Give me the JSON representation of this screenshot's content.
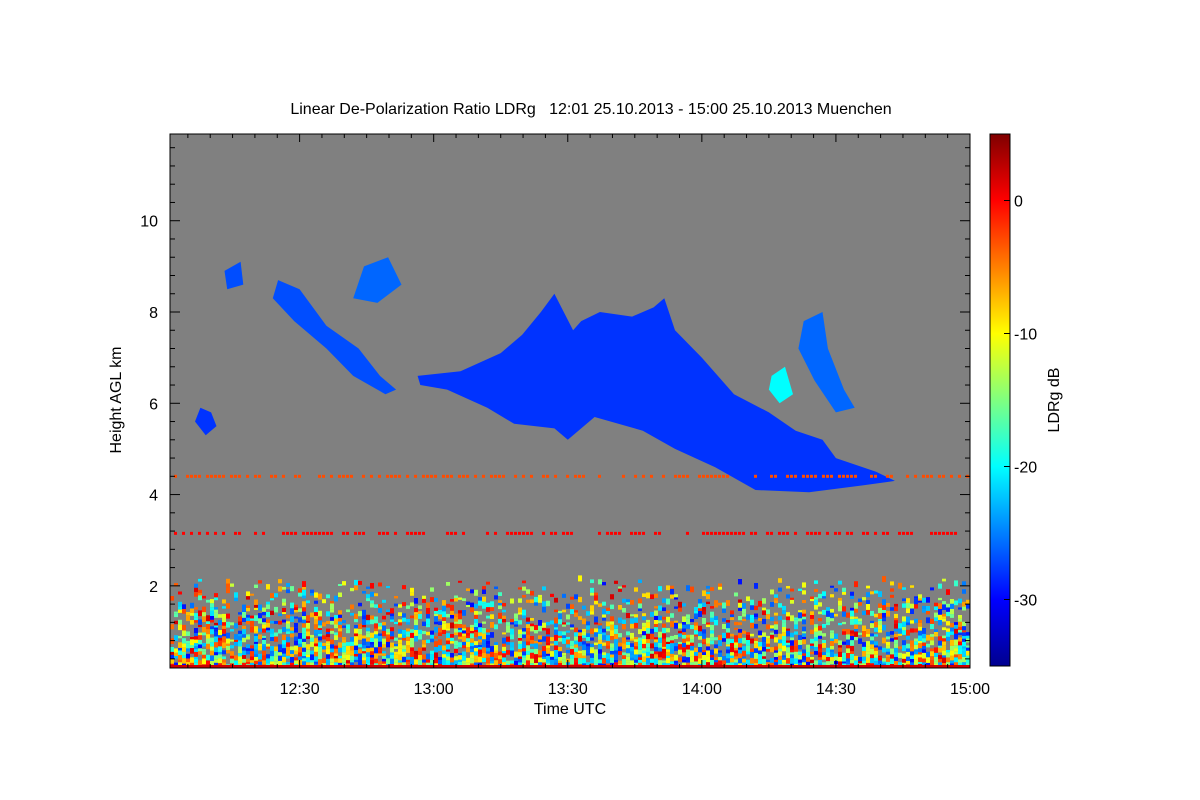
{
  "chart_data": {
    "type": "heatmap",
    "title": "Linear De-Polarization Ratio LDRg   12:01 25.10.2013 - 15:00 25.10.2013 Muenchen",
    "xlabel": "Time UTC",
    "ylabel": "Height AGL km",
    "x_ticks": [
      "12:30",
      "13:00",
      "13:30",
      "14:00",
      "14:30",
      "15:00"
    ],
    "x_tick_hours": [
      12.5,
      13.0,
      13.5,
      14.0,
      14.5,
      15.0
    ],
    "xlim_hours": [
      12.0167,
      15.0
    ],
    "y_ticks": [
      2,
      4,
      6,
      8,
      10
    ],
    "ylim": [
      0.2,
      11.9
    ],
    "background_color": "#808080",
    "colorbar": {
      "label": "LDRg dB",
      "ticks": [
        0,
        -10,
        -20,
        -30
      ],
      "range": [
        -35,
        5
      ],
      "colormap": "jet"
    },
    "features": [
      {
        "kind": "cirrus",
        "ldr_db": -28,
        "points": [
          [
            12.13,
            5.9
          ],
          [
            12.17,
            5.8
          ],
          [
            12.19,
            5.5
          ],
          [
            12.15,
            5.3
          ],
          [
            12.11,
            5.6
          ]
        ]
      },
      {
        "kind": "cirrus",
        "ldr_db": -27,
        "points": [
          [
            12.22,
            8.9
          ],
          [
            12.28,
            9.1
          ],
          [
            12.29,
            8.6
          ],
          [
            12.23,
            8.5
          ]
        ]
      },
      {
        "kind": "cirrus",
        "ldr_db": -27,
        "points": [
          [
            12.42,
            8.7
          ],
          [
            12.5,
            8.5
          ],
          [
            12.6,
            7.7
          ],
          [
            12.72,
            7.2
          ],
          [
            12.8,
            6.6
          ],
          [
            12.86,
            6.3
          ],
          [
            12.82,
            6.2
          ],
          [
            12.7,
            6.6
          ],
          [
            12.6,
            7.2
          ],
          [
            12.48,
            7.8
          ],
          [
            12.4,
            8.3
          ]
        ]
      },
      {
        "kind": "cirrus",
        "ldr_db": -26,
        "points": [
          [
            12.74,
            9.0
          ],
          [
            12.83,
            9.2
          ],
          [
            12.88,
            8.6
          ],
          [
            12.79,
            8.2
          ],
          [
            12.7,
            8.3
          ]
        ]
      },
      {
        "kind": "cirrus",
        "ldr_db": -28,
        "points": [
          [
            12.94,
            6.6
          ],
          [
            13.1,
            6.7
          ],
          [
            13.25,
            7.1
          ],
          [
            13.33,
            7.5
          ],
          [
            13.4,
            8.0
          ],
          [
            13.45,
            8.4
          ],
          [
            13.52,
            7.6
          ],
          [
            13.55,
            7.8
          ],
          [
            13.62,
            8.0
          ],
          [
            13.74,
            7.9
          ],
          [
            13.82,
            8.1
          ],
          [
            13.86,
            8.3
          ],
          [
            13.9,
            7.6
          ],
          [
            14.0,
            7.0
          ],
          [
            14.12,
            6.2
          ],
          [
            14.25,
            5.8
          ],
          [
            14.35,
            5.4
          ],
          [
            14.45,
            5.2
          ],
          [
            14.5,
            4.8
          ],
          [
            14.65,
            4.5
          ],
          [
            14.72,
            4.3
          ],
          [
            14.6,
            4.2
          ],
          [
            14.4,
            4.05
          ],
          [
            14.2,
            4.1
          ],
          [
            14.05,
            4.6
          ],
          [
            13.9,
            5.0
          ],
          [
            13.78,
            5.4
          ],
          [
            13.6,
            5.7
          ],
          [
            13.5,
            5.2
          ],
          [
            13.45,
            5.45
          ],
          [
            13.3,
            5.55
          ],
          [
            13.2,
            5.9
          ],
          [
            13.05,
            6.3
          ],
          [
            12.95,
            6.4
          ]
        ]
      },
      {
        "kind": "cirrus",
        "ldr_db": -26,
        "points": [
          [
            14.38,
            7.8
          ],
          [
            14.45,
            8.0
          ],
          [
            14.47,
            7.2
          ],
          [
            14.53,
            6.3
          ],
          [
            14.57,
            5.9
          ],
          [
            14.5,
            5.8
          ],
          [
            14.42,
            6.5
          ],
          [
            14.36,
            7.2
          ]
        ]
      },
      {
        "kind": "cirrus",
        "ldr_db": -20,
        "points": [
          [
            14.26,
            6.6
          ],
          [
            14.31,
            6.8
          ],
          [
            14.34,
            6.2
          ],
          [
            14.29,
            6.0
          ],
          [
            14.25,
            6.3
          ]
        ]
      }
    ],
    "layers": [
      {
        "kind": "dotted_line",
        "height_km": 4.4,
        "ldr_db": -3
      },
      {
        "kind": "dotted_line",
        "height_km": 3.15,
        "ldr_db": 0
      },
      {
        "kind": "boundary_layer",
        "from_km": 0.2,
        "to_km": 2.1,
        "ldr_db_range": [
          -30,
          2
        ]
      }
    ]
  }
}
